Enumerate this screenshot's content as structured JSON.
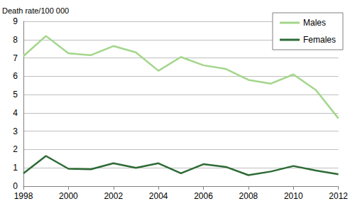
{
  "chart_data": {
    "type": "line",
    "y_label": "Death rate/100 000",
    "x": [
      1998,
      1999,
      2000,
      2001,
      2002,
      2003,
      2004,
      2005,
      2006,
      2007,
      2008,
      2009,
      2010,
      2011,
      2012
    ],
    "series": [
      {
        "name": "Males",
        "color": "#a3d68b",
        "values": [
          7.1,
          8.2,
          7.25,
          7.15,
          7.65,
          7.3,
          6.3,
          7.05,
          6.6,
          6.4,
          5.8,
          5.6,
          6.1,
          5.25,
          3.7
        ]
      },
      {
        "name": "Females",
        "color": "#2d6b35",
        "values": [
          0.7,
          1.65,
          0.95,
          0.92,
          1.25,
          1.0,
          1.25,
          0.7,
          1.2,
          1.05,
          0.6,
          0.8,
          1.1,
          0.85,
          0.65
        ]
      }
    ],
    "xlim": [
      1998,
      2012
    ],
    "xticks": [
      1998,
      2000,
      2002,
      2004,
      2006,
      2008,
      2010,
      2012
    ],
    "ylim": [
      0,
      9
    ],
    "yticks": [
      0,
      1,
      2,
      3,
      4,
      5,
      6,
      7,
      8,
      9
    ],
    "grid": true,
    "legend": "upper right"
  }
}
